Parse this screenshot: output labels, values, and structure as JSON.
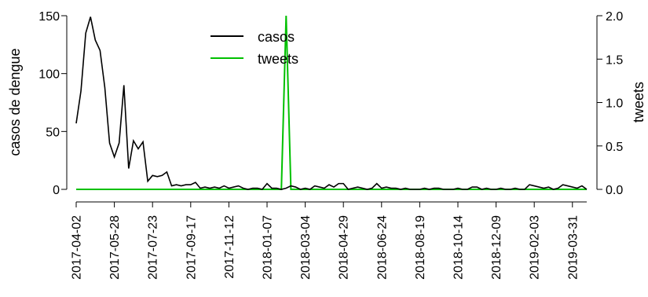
{
  "chart_data": {
    "type": "line",
    "ylabel_left": "casos de dengue",
    "ylabel_right": "tweets",
    "ylim_left": [
      0,
      150
    ],
    "ylim_right": [
      0,
      2.0
    ],
    "yticks_left": [
      "0",
      "50",
      "100",
      "150"
    ],
    "yticks_right": [
      "0.0",
      "0.5",
      "1.0",
      "1.5",
      "2.0"
    ],
    "x_tick_labels": [
      "2017-04-02",
      "2017-05-28",
      "2017-07-23",
      "2017-09-17",
      "2017-11-12",
      "2018-01-07",
      "2018-03-04",
      "2018-04-29",
      "2018-06-24",
      "2018-08-19",
      "2018-10-14",
      "2018-12-09",
      "2019-02-03",
      "2019-03-31"
    ],
    "legend": {
      "position": "top-center",
      "entries": [
        "casos",
        "tweets"
      ]
    },
    "x_weeks_start": "2017-04-02",
    "series": [
      {
        "name": "casos",
        "axis": "left",
        "color": "#000000",
        "values": [
          57,
          85,
          135,
          149,
          129,
          120,
          88,
          40,
          28,
          40,
          90,
          18,
          42,
          35,
          41,
          7,
          12,
          11,
          12,
          15,
          3,
          4,
          3,
          4,
          4,
          6,
          1,
          2,
          1,
          2,
          1,
          3,
          1,
          2,
          3,
          1,
          0,
          1,
          1,
          0,
          5,
          1,
          1,
          0,
          1,
          3,
          2,
          0,
          1,
          0,
          3,
          2,
          1,
          4,
          2,
          5,
          5,
          0,
          1,
          2,
          1,
          0,
          1,
          5,
          1,
          2,
          1,
          1,
          0,
          1,
          0,
          0,
          0,
          1,
          0,
          1,
          1,
          0,
          0,
          0,
          1,
          0,
          0,
          2,
          2,
          0,
          1,
          0,
          0,
          1,
          0,
          0,
          1,
          0,
          0,
          4,
          3,
          2,
          1,
          2,
          0,
          1,
          4,
          3,
          2,
          1,
          3,
          0
        ]
      },
      {
        "name": "tweets",
        "axis": "right",
        "color": "#00c000",
        "values": [
          0,
          0,
          0,
          0,
          0,
          0,
          0,
          0,
          0,
          0,
          0,
          0,
          0,
          0,
          0,
          0,
          0,
          0,
          0,
          0,
          0,
          0,
          0,
          0,
          0,
          0,
          0,
          0,
          0,
          0,
          0,
          0,
          0,
          0,
          0,
          0,
          0,
          0,
          0,
          0,
          0,
          0,
          0,
          0,
          2.0,
          0,
          0,
          0,
          0,
          0,
          0,
          0,
          0,
          0,
          0,
          0,
          0,
          0,
          0,
          0,
          0,
          0,
          0,
          0,
          0,
          0,
          0,
          0,
          0,
          0,
          0,
          0,
          0,
          0,
          0,
          0,
          0,
          0,
          0,
          0,
          0,
          0,
          0,
          0,
          0,
          0,
          0,
          0,
          0,
          0,
          0,
          0,
          0,
          0,
          0,
          0,
          0,
          0,
          0,
          0,
          0,
          0,
          0,
          0,
          0,
          0,
          0,
          0
        ]
      }
    ]
  }
}
